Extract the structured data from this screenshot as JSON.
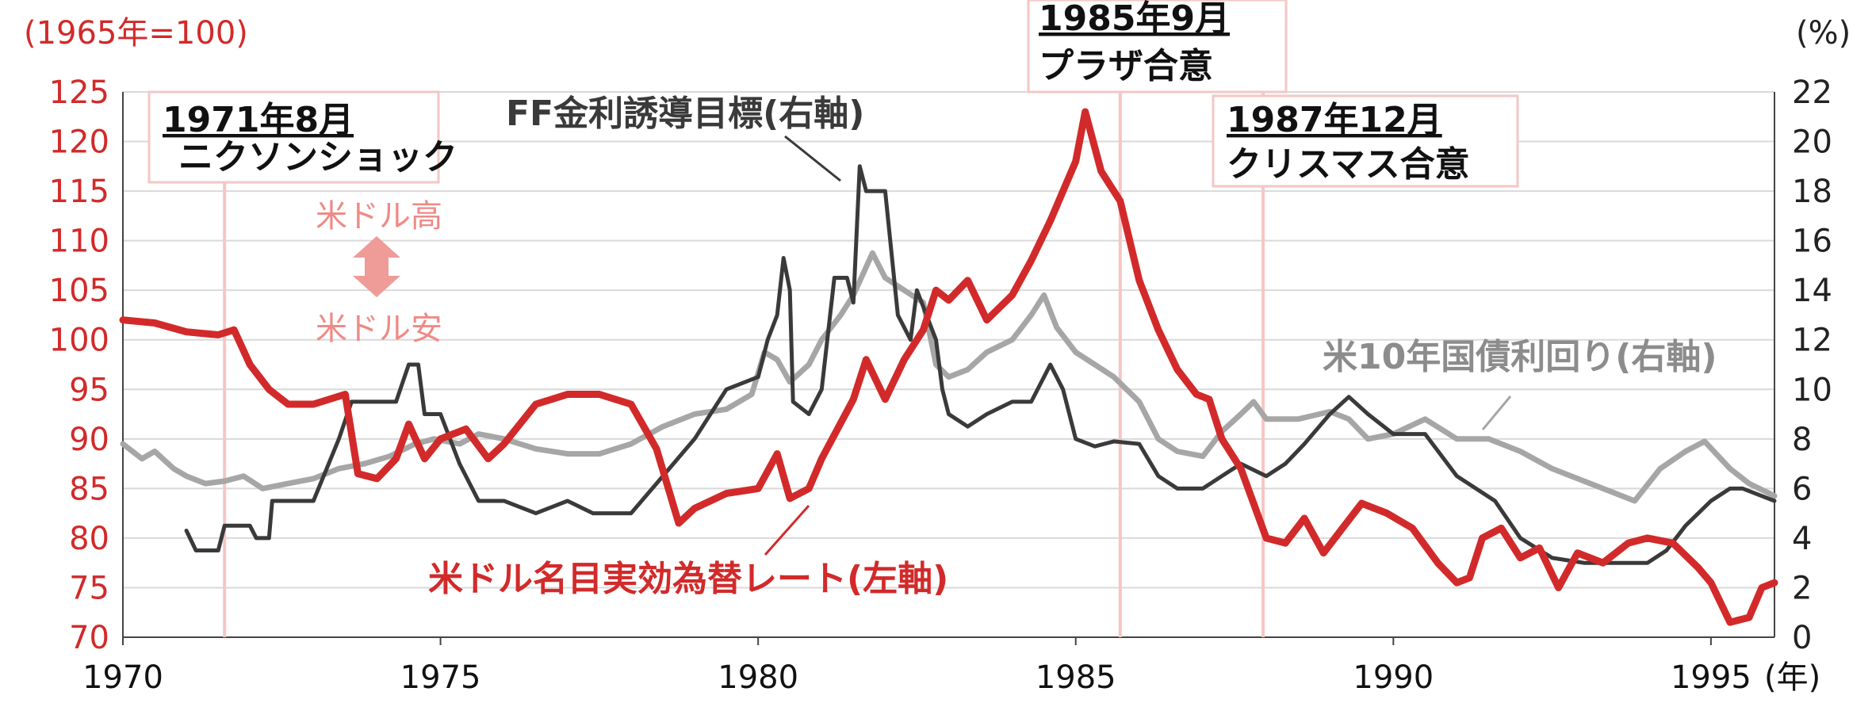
{
  "chart_data": {
    "type": "line",
    "left_unit": "(1965年=100)",
    "right_unit": "(%)",
    "x_unit": "(年)",
    "left_axis": {
      "ylim": [
        70,
        125
      ],
      "ticks": [
        70,
        75,
        80,
        85,
        90,
        95,
        100,
        105,
        110,
        115,
        120,
        125
      ]
    },
    "right_axis": {
      "ylim": [
        0,
        22
      ],
      "ticks": [
        0,
        2,
        4,
        6,
        8,
        10,
        12,
        14,
        16,
        18,
        20,
        22
      ]
    },
    "x_axis": {
      "xlim": [
        1970,
        1996
      ],
      "ticks": [
        1970,
        1975,
        1980,
        1985,
        1990,
        1995
      ]
    },
    "grid": true,
    "series": [
      {
        "name": "米ドル名目実効為替レート(左軸)",
        "axis": "left",
        "color": "#d22a2a",
        "points": [
          [
            1970.0,
            102
          ],
          [
            1970.5,
            101.7
          ],
          [
            1971.0,
            100.8
          ],
          [
            1971.5,
            100.5
          ],
          [
            1971.75,
            101
          ],
          [
            1972.0,
            97.5
          ],
          [
            1972.3,
            95
          ],
          [
            1972.6,
            93.5
          ],
          [
            1973.0,
            93.5
          ],
          [
            1973.5,
            94.5
          ],
          [
            1973.7,
            86.5
          ],
          [
            1974.0,
            86
          ],
          [
            1974.3,
            88
          ],
          [
            1974.5,
            91.5
          ],
          [
            1974.75,
            88
          ],
          [
            1975.0,
            90
          ],
          [
            1975.4,
            91
          ],
          [
            1975.75,
            88
          ],
          [
            1976.0,
            89.5
          ],
          [
            1976.5,
            93.5
          ],
          [
            1977.0,
            94.5
          ],
          [
            1977.5,
            94.5
          ],
          [
            1978.0,
            93.5
          ],
          [
            1978.4,
            89
          ],
          [
            1978.75,
            81.5
          ],
          [
            1979.0,
            83
          ],
          [
            1979.5,
            84.5
          ],
          [
            1980.0,
            85
          ],
          [
            1980.3,
            88.5
          ],
          [
            1980.5,
            84
          ],
          [
            1980.8,
            85
          ],
          [
            1981.0,
            88
          ],
          [
            1981.5,
            94
          ],
          [
            1981.7,
            98
          ],
          [
            1982.0,
            94
          ],
          [
            1982.3,
            98
          ],
          [
            1982.6,
            101
          ],
          [
            1982.8,
            105
          ],
          [
            1983.0,
            104
          ],
          [
            1983.3,
            106
          ],
          [
            1983.6,
            102
          ],
          [
            1984.0,
            104.5
          ],
          [
            1984.3,
            108
          ],
          [
            1984.6,
            112
          ],
          [
            1985.0,
            118
          ],
          [
            1985.15,
            123
          ],
          [
            1985.4,
            117
          ],
          [
            1985.7,
            114
          ],
          [
            1986.0,
            106
          ],
          [
            1986.3,
            101
          ],
          [
            1986.6,
            97
          ],
          [
            1986.9,
            94.5
          ],
          [
            1987.1,
            94
          ],
          [
            1987.3,
            90
          ],
          [
            1987.6,
            87
          ],
          [
            1988.0,
            80
          ],
          [
            1988.3,
            79.5
          ],
          [
            1988.6,
            82
          ],
          [
            1988.9,
            78.5
          ],
          [
            1989.2,
            81
          ],
          [
            1989.5,
            83.5
          ],
          [
            1989.9,
            82.5
          ],
          [
            1990.3,
            81
          ],
          [
            1990.7,
            77.5
          ],
          [
            1991.0,
            75.5
          ],
          [
            1991.2,
            76
          ],
          [
            1991.4,
            80
          ],
          [
            1991.7,
            81
          ],
          [
            1992.0,
            78
          ],
          [
            1992.3,
            79
          ],
          [
            1992.6,
            75
          ],
          [
            1992.9,
            78.5
          ],
          [
            1993.3,
            77.5
          ],
          [
            1993.7,
            79.5
          ],
          [
            1994.0,
            80
          ],
          [
            1994.4,
            79.5
          ],
          [
            1994.8,
            77
          ],
          [
            1995.0,
            75.5
          ],
          [
            1995.3,
            71.5
          ],
          [
            1995.6,
            72
          ],
          [
            1995.8,
            75
          ],
          [
            1996.0,
            75.5
          ]
        ]
      },
      {
        "name": "FF金利誘導目標(右軸)",
        "axis": "right",
        "color": "#3a3a3a",
        "points": [
          [
            1971.0,
            4.3
          ],
          [
            1971.15,
            3.5
          ],
          [
            1971.5,
            3.5
          ],
          [
            1971.6,
            4.5
          ],
          [
            1972.0,
            4.5
          ],
          [
            1972.1,
            4
          ],
          [
            1972.3,
            4
          ],
          [
            1972.35,
            5.5
          ],
          [
            1973.0,
            5.5
          ],
          [
            1973.4,
            8
          ],
          [
            1973.6,
            9.5
          ],
          [
            1974.0,
            9.5
          ],
          [
            1974.3,
            9.5
          ],
          [
            1974.5,
            11
          ],
          [
            1974.65,
            11
          ],
          [
            1974.75,
            9
          ],
          [
            1975.0,
            9
          ],
          [
            1975.3,
            7
          ],
          [
            1975.6,
            5.5
          ],
          [
            1976.0,
            5.5
          ],
          [
            1976.5,
            5
          ],
          [
            1977.0,
            5.5
          ],
          [
            1977.4,
            5
          ],
          [
            1978.0,
            5
          ],
          [
            1978.5,
            6.5
          ],
          [
            1979.0,
            8
          ],
          [
            1979.5,
            10
          ],
          [
            1980.0,
            10.5
          ],
          [
            1980.15,
            12
          ],
          [
            1980.3,
            13
          ],
          [
            1980.4,
            15.3
          ],
          [
            1980.5,
            14
          ],
          [
            1980.55,
            9.5
          ],
          [
            1980.8,
            9
          ],
          [
            1981.0,
            10
          ],
          [
            1981.2,
            14.5
          ],
          [
            1981.4,
            14.5
          ],
          [
            1981.5,
            13.5
          ],
          [
            1981.6,
            19
          ],
          [
            1981.7,
            18
          ],
          [
            1982.0,
            18
          ],
          [
            1982.2,
            13
          ],
          [
            1982.4,
            12
          ],
          [
            1982.5,
            14
          ],
          [
            1982.8,
            12
          ],
          [
            1982.9,
            10
          ],
          [
            1983.0,
            9
          ],
          [
            1983.3,
            8.5
          ],
          [
            1983.6,
            9
          ],
          [
            1984.0,
            9.5
          ],
          [
            1984.3,
            9.5
          ],
          [
            1984.5,
            10.5
          ],
          [
            1984.6,
            11
          ],
          [
            1984.8,
            10
          ],
          [
            1985.0,
            8
          ],
          [
            1985.3,
            7.7
          ],
          [
            1985.6,
            7.9
          ],
          [
            1986.0,
            7.8
          ],
          [
            1986.3,
            6.5
          ],
          [
            1986.6,
            6
          ],
          [
            1987.0,
            6
          ],
          [
            1987.3,
            6.5
          ],
          [
            1987.6,
            7
          ],
          [
            1988.0,
            6.5
          ],
          [
            1988.3,
            7
          ],
          [
            1988.6,
            7.8
          ],
          [
            1989.0,
            9
          ],
          [
            1989.3,
            9.7
          ],
          [
            1989.6,
            9
          ],
          [
            1990.0,
            8.2
          ],
          [
            1990.5,
            8.2
          ],
          [
            1991.0,
            6.5
          ],
          [
            1991.3,
            6
          ],
          [
            1991.6,
            5.5
          ],
          [
            1992.0,
            4
          ],
          [
            1992.5,
            3.2
          ],
          [
            1993.0,
            3
          ],
          [
            1993.5,
            3
          ],
          [
            1994.0,
            3
          ],
          [
            1994.3,
            3.5
          ],
          [
            1994.6,
            4.5
          ],
          [
            1995.0,
            5.5
          ],
          [
            1995.3,
            6
          ],
          [
            1995.5,
            6
          ],
          [
            1996.0,
            5.5
          ]
        ]
      },
      {
        "name": "米10年国債利回り(右軸)",
        "axis": "right",
        "color": "#a6a6a6",
        "points": [
          [
            1970.0,
            7.8
          ],
          [
            1970.3,
            7.2
          ],
          [
            1970.5,
            7.5
          ],
          [
            1970.8,
            6.8
          ],
          [
            1971.0,
            6.5
          ],
          [
            1971.3,
            6.2
          ],
          [
            1971.6,
            6.3
          ],
          [
            1971.9,
            6.5
          ],
          [
            1972.2,
            6
          ],
          [
            1972.6,
            6.2
          ],
          [
            1973.0,
            6.4
          ],
          [
            1973.4,
            6.8
          ],
          [
            1973.8,
            7
          ],
          [
            1974.2,
            7.3
          ],
          [
            1974.6,
            7.8
          ],
          [
            1974.9,
            8
          ],
          [
            1975.3,
            7.8
          ],
          [
            1975.6,
            8.2
          ],
          [
            1976.0,
            8
          ],
          [
            1976.5,
            7.6
          ],
          [
            1977.0,
            7.4
          ],
          [
            1977.5,
            7.4
          ],
          [
            1978.0,
            7.8
          ],
          [
            1978.5,
            8.5
          ],
          [
            1979.0,
            9
          ],
          [
            1979.5,
            9.2
          ],
          [
            1979.9,
            9.8
          ],
          [
            1980.1,
            11.5
          ],
          [
            1980.3,
            11.2
          ],
          [
            1980.5,
            10.3
          ],
          [
            1980.8,
            11
          ],
          [
            1981.0,
            12
          ],
          [
            1981.3,
            13
          ],
          [
            1981.5,
            13.8
          ],
          [
            1981.8,
            15.5
          ],
          [
            1982.0,
            14.5
          ],
          [
            1982.3,
            14
          ],
          [
            1982.6,
            13.5
          ],
          [
            1982.8,
            11
          ],
          [
            1983.0,
            10.5
          ],
          [
            1983.3,
            10.8
          ],
          [
            1983.6,
            11.5
          ],
          [
            1984.0,
            12
          ],
          [
            1984.3,
            13
          ],
          [
            1984.5,
            13.8
          ],
          [
            1984.7,
            12.5
          ],
          [
            1985.0,
            11.5
          ],
          [
            1985.3,
            11
          ],
          [
            1985.6,
            10.5
          ],
          [
            1986.0,
            9.5
          ],
          [
            1986.3,
            8
          ],
          [
            1986.6,
            7.5
          ],
          [
            1987.0,
            7.3
          ],
          [
            1987.3,
            8.3
          ],
          [
            1987.6,
            9
          ],
          [
            1987.8,
            9.5
          ],
          [
            1988.0,
            8.8
          ],
          [
            1988.5,
            8.8
          ],
          [
            1989.0,
            9.1
          ],
          [
            1989.3,
            8.8
          ],
          [
            1989.6,
            8
          ],
          [
            1990.0,
            8.2
          ],
          [
            1990.5,
            8.8
          ],
          [
            1991.0,
            8
          ],
          [
            1991.5,
            8
          ],
          [
            1992.0,
            7.5
          ],
          [
            1992.5,
            6.8
          ],
          [
            1993.0,
            6.3
          ],
          [
            1993.5,
            5.8
          ],
          [
            1993.8,
            5.5
          ],
          [
            1994.2,
            6.8
          ],
          [
            1994.6,
            7.5
          ],
          [
            1994.9,
            7.9
          ],
          [
            1995.3,
            6.8
          ],
          [
            1995.6,
            6.2
          ],
          [
            1996.0,
            5.7
          ]
        ]
      }
    ],
    "annotations": [
      {
        "date": "1971年8月",
        "name": "ニクソンショック",
        "x": 1971.6
      },
      {
        "date": "1985年9月",
        "name": "プラザ合意",
        "x": 1985.7
      },
      {
        "date": "1987年12月",
        "name": "クリスマス合意",
        "x": 1987.95
      }
    ],
    "direction_labels": {
      "up": "米ドル高",
      "down": "米ドル安"
    }
  }
}
